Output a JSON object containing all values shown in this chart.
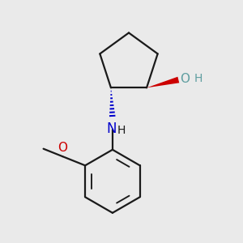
{
  "background_color": "#eaeaea",
  "bond_color": "#1a1a1a",
  "oh_color": "#5f9ea0",
  "o_color": "#cc0000",
  "n_color": "#0000cc",
  "wedge_color": "#cc0000",
  "dash_color": "#0000cc",
  "line_width": 1.6,
  "figsize": [
    3.0,
    3.0
  ],
  "dpi": 100,
  "xlim": [
    0,
    10
  ],
  "ylim": [
    0,
    10
  ]
}
